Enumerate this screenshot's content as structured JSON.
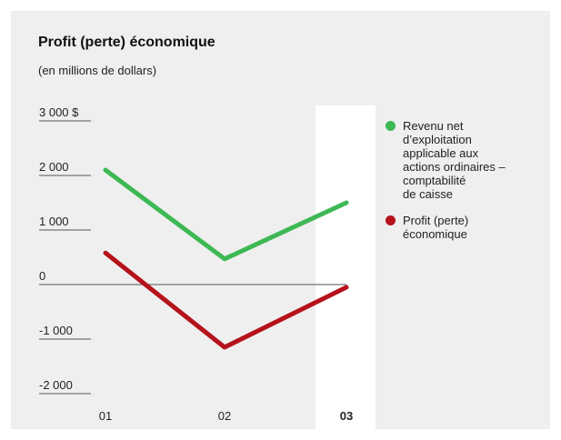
{
  "chart_data": {
    "type": "line",
    "title": "Profit (perte) économique",
    "subtitle": "(en millions de dollars)",
    "categories": [
      "01",
      "02",
      "03"
    ],
    "highlight_category": "03",
    "ylim": [
      -2000,
      3000
    ],
    "y_tick_labels": [
      "3 000 $",
      "2 000",
      "1 000",
      "0",
      "-1 000",
      "-2 000"
    ],
    "y_tick_values": [
      3000,
      2000,
      1000,
      0,
      -1000,
      -2000
    ],
    "series": [
      {
        "name": "Revenu net\nd’exploitation\napplicable aux\nactions ordinaires –\ncomptabilité\nde caisse",
        "values": [
          2100,
          470,
          1500
        ],
        "color": "#3db854"
      },
      {
        "name": "Profit (perte)\néconomique",
        "values": [
          580,
          -1150,
          -50
        ],
        "color": "#b5121b"
      }
    ],
    "grid": false,
    "legend_position": "right"
  }
}
